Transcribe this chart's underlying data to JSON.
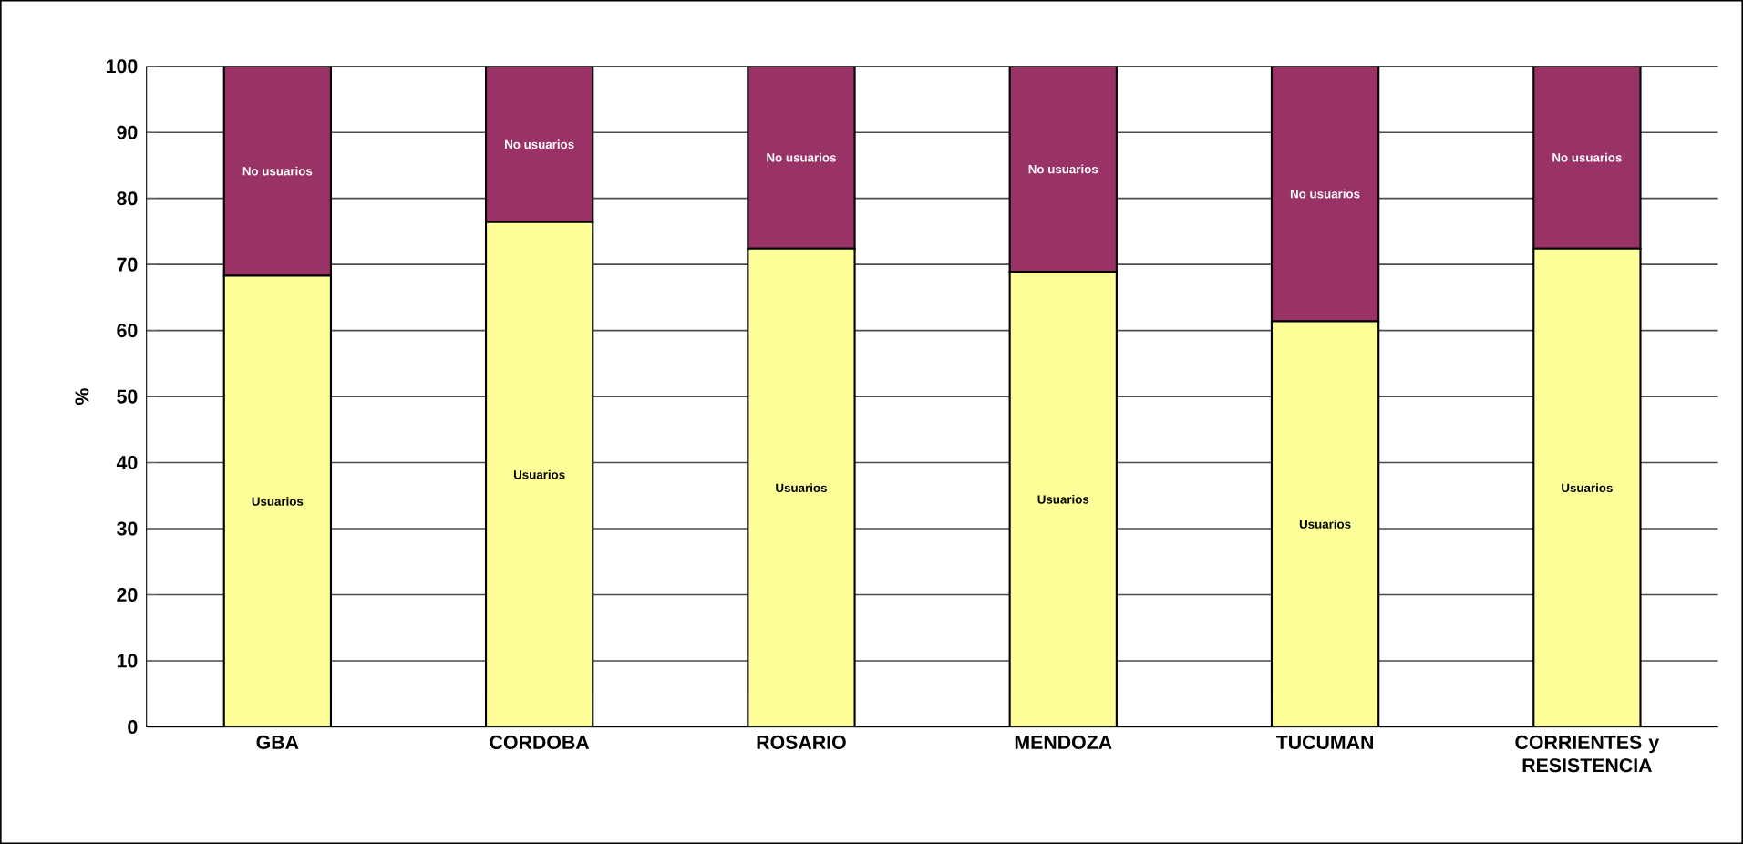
{
  "chart_data": {
    "type": "bar",
    "stacked": true,
    "ylabel": "%",
    "categories": [
      "GBA",
      "CORDOBA",
      "ROSARIO",
      "MENDOZA",
      "TUCUMAN",
      "CORRIENTES y RESISTENCIA"
    ],
    "series": [
      {
        "name": "Usuarios",
        "color": "#ffff99",
        "values": [
          68.3,
          76.4,
          72.4,
          68.9,
          61.4,
          72.4
        ]
      },
      {
        "name": "No usuarios",
        "color": "#993366",
        "values": [
          31.7,
          23.6,
          27.6,
          31.1,
          38.6,
          27.6
        ]
      }
    ],
    "ylim": [
      0,
      100
    ],
    "yticks": [
      0,
      10,
      20,
      30,
      40,
      50,
      60,
      70,
      80,
      90,
      100
    ],
    "grid": "y"
  }
}
